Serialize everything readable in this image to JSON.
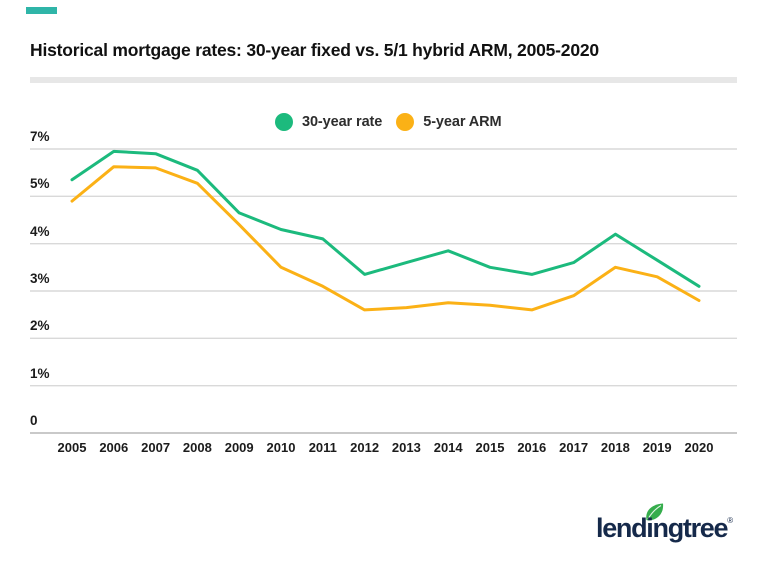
{
  "page": {
    "title": "Historical mortgage rates: 30-year fixed vs. 5/1 hybrid ARM, 2005-2020",
    "accent_bar_color": "#2fb5a8"
  },
  "legend": {
    "items": [
      {
        "label": "30-year rate",
        "color": "#1cba7d"
      },
      {
        "label": "5-year ARM",
        "color": "#fbb116"
      }
    ]
  },
  "chart_data": {
    "type": "line",
    "title": "Historical mortgage rates: 30-year fixed vs. 5/1 hybrid ARM, 2005-2020",
    "categories": [
      "2005",
      "2006",
      "2007",
      "2008",
      "2009",
      "2010",
      "2011",
      "2012",
      "2013",
      "2014",
      "2015",
      "2016",
      "2017",
      "2018",
      "2019",
      "2020"
    ],
    "series": [
      {
        "name": "30-year rate",
        "color": "#1cba7d",
        "values": [
          5.7,
          6.9,
          6.8,
          6.1,
          4.65,
          4.3,
          4.1,
          3.35,
          3.6,
          3.85,
          3.5,
          3.35,
          3.6,
          4.2,
          3.65,
          3.1
        ]
      },
      {
        "name": "5-year ARM",
        "color": "#fbb116",
        "values": [
          4.9,
          6.25,
          6.2,
          5.55,
          4.4,
          3.5,
          3.1,
          2.6,
          2.65,
          2.75,
          2.7,
          2.6,
          2.9,
          3.5,
          3.3,
          2.8
        ]
      }
    ],
    "xlabel": "",
    "ylabel": "",
    "ylim": [
      0,
      7
    ],
    "y_axis": {
      "labels_top_to_bottom": [
        "7%",
        "5%",
        "4%",
        "3%",
        "2%",
        "1%",
        "0"
      ],
      "note": "7 evenly spaced gridlines; top interval spans 5% to 7% (no 6% line)"
    },
    "grid": true,
    "legend_position": "top-center",
    "gridline_color": "#d9d9d9"
  },
  "logo": {
    "text": "lendingtree",
    "registered": "®",
    "navy": "#15294a",
    "leaf_color": "#35ad4c"
  }
}
